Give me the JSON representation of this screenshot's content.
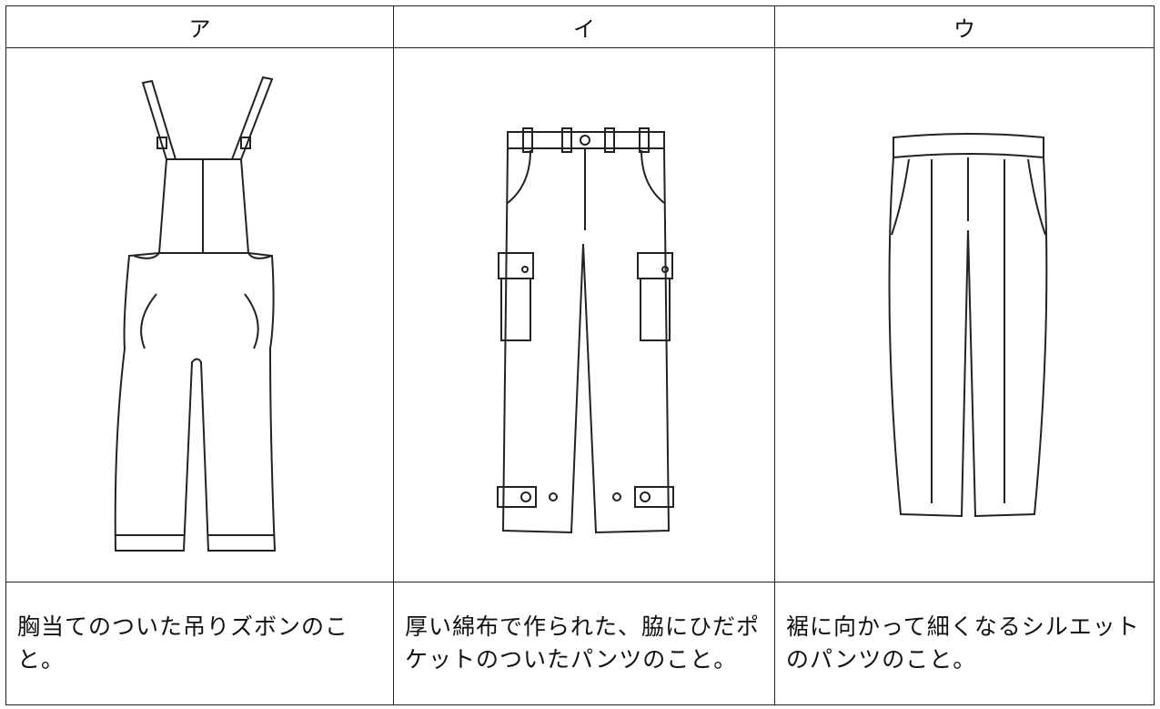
{
  "table": {
    "header": [
      "ア",
      "イ",
      "ウ"
    ],
    "rows": [
      [
        "胸当てのついた吊りズボンのこと。",
        "厚い綿布で作られた、脇にひだポケットのついたパンツのこと。",
        "裾に向かって細くなるシルエットのパンツのこと。"
      ]
    ]
  }
}
